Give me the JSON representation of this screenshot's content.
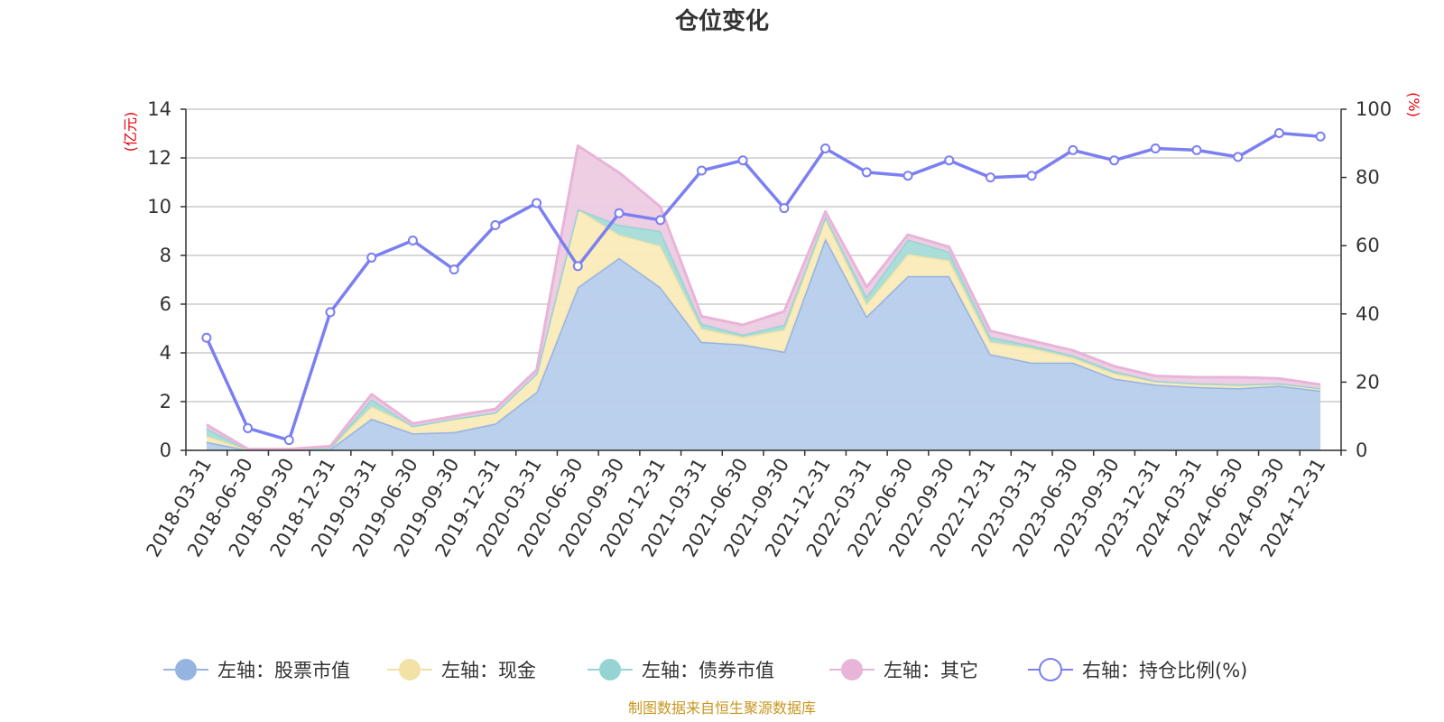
{
  "chart_data": {
    "type": "area",
    "title": "仓位变化",
    "source": "制图数据来自恒生聚源数据库",
    "left_axis": {
      "unit": "(亿元)",
      "min": 0,
      "max": 14,
      "ticks": [
        "0",
        "2",
        "4",
        "6",
        "8",
        "10",
        "12",
        "14"
      ]
    },
    "right_axis": {
      "unit": "(%)",
      "min": 0,
      "max": 100,
      "ticks": [
        "0",
        "20",
        "40",
        "60",
        "80",
        "100"
      ]
    },
    "categories": [
      "2018-03-31",
      "2018-06-30",
      "2018-09-30",
      "2018-12-31",
      "2019-03-31",
      "2019-06-30",
      "2019-09-30",
      "2019-12-31",
      "2020-03-31",
      "2020-06-30",
      "2020-09-30",
      "2020-12-31",
      "2021-03-31",
      "2021-06-30",
      "2021-09-30",
      "2021-12-31",
      "2022-03-31",
      "2022-06-30",
      "2022-09-30",
      "2022-12-31",
      "2023-03-31",
      "2023-06-30",
      "2023-09-30",
      "2023-12-31",
      "2024-03-31",
      "2024-06-30",
      "2024-09-30",
      "2024-12-31"
    ],
    "series": [
      {
        "name": "左轴：股票市值",
        "axis": "left",
        "kind": "area",
        "color": "#96b4e0",
        "fill": "#b7cdeb",
        "values": [
          0.35,
          0.02,
          0.02,
          0.05,
          1.3,
          0.7,
          0.75,
          1.1,
          2.4,
          6.7,
          7.9,
          6.7,
          4.45,
          4.35,
          4.05,
          8.7,
          5.5,
          7.15,
          7.15,
          3.95,
          3.6,
          3.6,
          2.95,
          2.7,
          2.6,
          2.55,
          2.65,
          2.45
        ]
      },
      {
        "name": "左轴：现金",
        "axis": "left",
        "kind": "area",
        "color": "#f2e2a6",
        "fill": "#faebb8",
        "values": [
          0.25,
          0.01,
          0.01,
          0.05,
          0.5,
          0.3,
          0.55,
          0.45,
          0.75,
          3.2,
          0.95,
          1.7,
          0.55,
          0.3,
          0.9,
          0.8,
          0.5,
          0.9,
          0.65,
          0.5,
          0.6,
          0.2,
          0.2,
          0.15,
          0.15,
          0.15,
          0.1,
          0.1
        ]
      },
      {
        "name": "左轴：债券市值",
        "axis": "left",
        "kind": "area",
        "color": "#96d4d4",
        "fill": "#a6dcd8",
        "values": [
          0.3,
          0,
          0,
          0,
          0.3,
          0,
          0,
          0,
          0,
          0,
          0.4,
          0.6,
          0.2,
          0.1,
          0.2,
          0.1,
          0.3,
          0.6,
          0.35,
          0.2,
          0.1,
          0.1,
          0.1,
          0,
          0,
          0,
          0,
          0
        ]
      },
      {
        "name": "左轴：其它",
        "axis": "left",
        "kind": "area",
        "color": "#e8b4d8",
        "fill": "#edcbe2",
        "values": [
          0.15,
          0.02,
          0.02,
          0.07,
          0.2,
          0.1,
          0.1,
          0.15,
          0.15,
          2.6,
          2.15,
          1.0,
          0.3,
          0.4,
          0.55,
          0.2,
          0.4,
          0.2,
          0.2,
          0.25,
          0.2,
          0.2,
          0.2,
          0.2,
          0.25,
          0.3,
          0.2,
          0.15
        ]
      },
      {
        "name": "右轴：持仓比例(%)",
        "axis": "right",
        "kind": "line",
        "color": "#7b7ff0",
        "values": [
          33,
          6.5,
          3,
          40.5,
          56.5,
          61.5,
          53,
          66,
          72.5,
          54,
          69.5,
          67.5,
          82,
          85,
          71,
          88.5,
          81.5,
          80.5,
          85,
          80,
          80.5,
          88,
          85,
          88.5,
          88,
          86,
          93,
          92
        ]
      }
    ]
  }
}
